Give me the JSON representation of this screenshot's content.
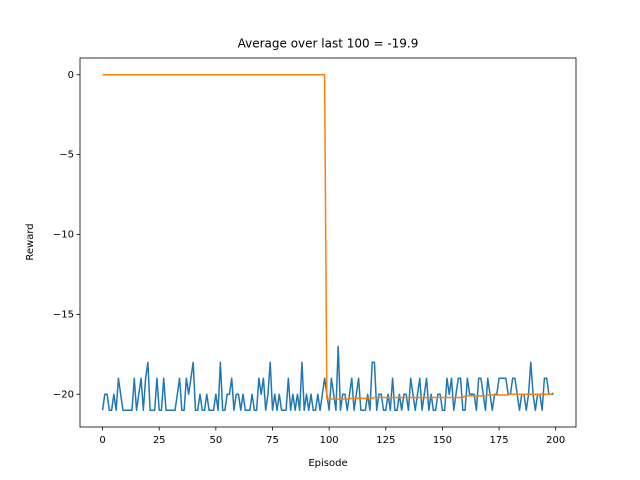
{
  "chart_data": {
    "type": "line",
    "title": "Average over last 100 = -19.9",
    "x_label": "Episode",
    "y_label": "Reward",
    "x": [
      0,
      1,
      2,
      3,
      4,
      5,
      6,
      7,
      8,
      9,
      10,
      11,
      12,
      13,
      14,
      15,
      16,
      17,
      18,
      19,
      20,
      21,
      22,
      23,
      24,
      25,
      26,
      27,
      28,
      29,
      30,
      31,
      32,
      33,
      34,
      35,
      36,
      37,
      38,
      39,
      40,
      41,
      42,
      43,
      44,
      45,
      46,
      47,
      48,
      49,
      50,
      51,
      52,
      53,
      54,
      55,
      56,
      57,
      58,
      59,
      60,
      61,
      62,
      63,
      64,
      65,
      66,
      67,
      68,
      69,
      70,
      71,
      72,
      73,
      74,
      75,
      76,
      77,
      78,
      79,
      80,
      81,
      82,
      83,
      84,
      85,
      86,
      87,
      88,
      89,
      90,
      91,
      92,
      93,
      94,
      95,
      96,
      97,
      98,
      99,
      100,
      101,
      102,
      103,
      104,
      105,
      106,
      107,
      108,
      109,
      110,
      111,
      112,
      113,
      114,
      115,
      116,
      117,
      118,
      119,
      120,
      121,
      122,
      123,
      124,
      125,
      126,
      127,
      128,
      129,
      130,
      131,
      132,
      133,
      134,
      135,
      136,
      137,
      138,
      139,
      140,
      141,
      142,
      143,
      144,
      145,
      146,
      147,
      148,
      149,
      150,
      151,
      152,
      153,
      154,
      155,
      156,
      157,
      158,
      159,
      160,
      161,
      162,
      163,
      164,
      165,
      166,
      167,
      168,
      169,
      170,
      171,
      172,
      173,
      174,
      175,
      176,
      177,
      178,
      179,
      180,
      181,
      182,
      183,
      184,
      185,
      186,
      187,
      188,
      189,
      190,
      191,
      192,
      193,
      194,
      195,
      196,
      197,
      198,
      199
    ],
    "series": [
      {
        "color": "#1f77b4",
        "values": [
          -21,
          -20,
          -20,
          -21,
          -21,
          -20,
          -21,
          -19,
          -20,
          -21,
          -21,
          -21,
          -21,
          -21,
          -19,
          -21,
          -20,
          -19,
          -21,
          -19,
          -18,
          -21,
          -21,
          -21,
          -19,
          -21,
          -21,
          -19,
          -21,
          -21,
          -21,
          -21,
          -21,
          -20,
          -19,
          -21,
          -21,
          -19,
          -20,
          -19,
          -18,
          -21,
          -21,
          -20,
          -21,
          -21,
          -20,
          -21,
          -21,
          -21,
          -20,
          -21,
          -18,
          -21,
          -21,
          -20,
          -20,
          -19,
          -21,
          -20,
          -20,
          -21,
          -20,
          -21,
          -21,
          -21,
          -20,
          -21,
          -21,
          -19,
          -20,
          -19,
          -21,
          -20,
          -18,
          -21,
          -20,
          -21,
          -20,
          -21,
          -21,
          -21,
          -19,
          -21,
          -20,
          -21,
          -20,
          -21,
          -18,
          -21,
          -20,
          -21,
          -20,
          -21,
          -21,
          -20,
          -21,
          -20,
          -19,
          -20,
          -21,
          -19,
          -20,
          -21,
          -17,
          -21,
          -20,
          -20,
          -21,
          -20,
          -19,
          -21,
          -20,
          -19,
          -21,
          -21,
          -21,
          -20,
          -21,
          -18,
          -18,
          -21,
          -20,
          -20,
          -21,
          -21,
          -20,
          -21,
          -19,
          -21,
          -21,
          -20,
          -21,
          -20,
          -20,
          -21,
          -19,
          -20,
          -21,
          -20,
          -19,
          -21,
          -20,
          -19,
          -21,
          -20,
          -21,
          -21,
          -20,
          -20,
          -21,
          -21,
          -19,
          -20,
          -19,
          -21,
          -20,
          -19,
          -19,
          -21,
          -21,
          -19,
          -20,
          -20,
          -20,
          -21,
          -19,
          -19,
          -20,
          -21,
          -19,
          -20,
          -21,
          -20,
          -20,
          -19,
          -19,
          -19,
          -19,
          -20,
          -20,
          -19,
          -19,
          -20,
          -21,
          -20,
          -20,
          -21,
          -20,
          -18,
          -20,
          -21,
          -20,
          -20,
          -21,
          -19,
          -19,
          -20,
          -20,
          -20
        ]
      },
      {
        "color": "#ff7f0e",
        "values": [
          0,
          0,
          0,
          0,
          0,
          0,
          0,
          0,
          0,
          0,
          0,
          0,
          0,
          0,
          0,
          0,
          0,
          0,
          0,
          0,
          0,
          0,
          0,
          0,
          0,
          0,
          0,
          0,
          0,
          0,
          0,
          0,
          0,
          0,
          0,
          0,
          0,
          0,
          0,
          0,
          0,
          0,
          0,
          0,
          0,
          0,
          0,
          0,
          0,
          0,
          0,
          0,
          0,
          0,
          0,
          0,
          0,
          0,
          0,
          0,
          0,
          0,
          0,
          0,
          0,
          0,
          0,
          0,
          0,
          0,
          0,
          0,
          0,
          0,
          0,
          0,
          0,
          0,
          0,
          0,
          0,
          0,
          0,
          0,
          0,
          0,
          0,
          0,
          0,
          0,
          0,
          0,
          0,
          0,
          0,
          0,
          0,
          0,
          0,
          -20.3,
          -20.3,
          -20.3,
          -20.3,
          -20.3,
          -20.3,
          -20.3,
          -20.3,
          -20.3,
          -20.3,
          -20.3,
          -20.25,
          -20.25,
          -20.25,
          -20.25,
          -20.25,
          -20.25,
          -20.25,
          -20.25,
          -20.25,
          -20.25,
          -20.2,
          -20.2,
          -20.2,
          -20.2,
          -20.2,
          -20.2,
          -20.2,
          -20.2,
          -20.2,
          -20.2,
          -20.2,
          -20.2,
          -20.2,
          -20.2,
          -20.2,
          -20.2,
          -20.2,
          -20.2,
          -20.2,
          -20.2,
          -20.2,
          -20.2,
          -20.2,
          -20.2,
          -20.2,
          -20.2,
          -20.2,
          -20.2,
          -20.2,
          -20.2,
          -20.2,
          -20.2,
          -20.2,
          -20.2,
          -20.2,
          -20.2,
          -20.2,
          -20.2,
          -20.2,
          -20.2,
          -20.1,
          -20.1,
          -20.1,
          -20.1,
          -20.1,
          -20.1,
          -20.1,
          -20.1,
          -20.1,
          -20.1,
          -20.05,
          -20.05,
          -20.05,
          -20.05,
          -20.05,
          -20.05,
          -20.05,
          -20.05,
          -20.05,
          -20.05,
          -20,
          -20,
          -20,
          -20,
          -20,
          -20,
          -20,
          -20,
          -20,
          -20,
          -20,
          -20,
          -20,
          -20,
          -20,
          -20,
          -20,
          -20,
          -20,
          -19.9
        ]
      }
    ],
    "xlim": [
      -9.95,
      208.95
    ],
    "ylim": [
      -22.05,
      1.05
    ],
    "xticks": [
      0,
      25,
      50,
      75,
      100,
      125,
      150,
      175,
      200
    ],
    "yticks": [
      {
        "value": 0,
        "label": "0"
      },
      {
        "value": -5,
        "label": "−5"
      },
      {
        "value": -10,
        "label": "−10"
      },
      {
        "value": -15,
        "label": "−15"
      },
      {
        "value": -20,
        "label": "−20"
      }
    ]
  }
}
